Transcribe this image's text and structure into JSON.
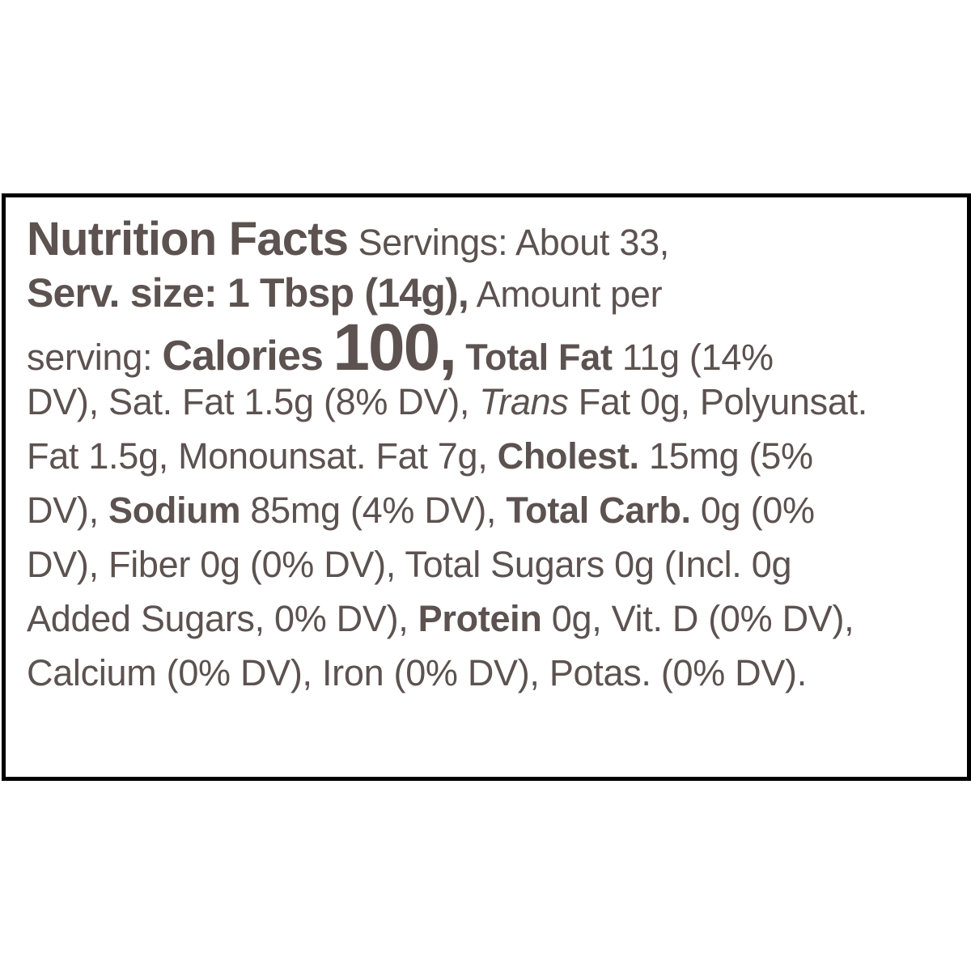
{
  "colors": {
    "text": "#5c5250",
    "border": "#000000",
    "background": "#ffffff"
  },
  "label": {
    "title": "Nutrition Facts",
    "servings": "Servings: About 33,",
    "serving_size": "Serv. size: 1 Tbsp (14g),",
    "amount_per_a": "Amount per",
    "amount_per_b": "serving:",
    "calories_label": "Calories",
    "calories_value": "100,",
    "total_fat_label": "Total Fat",
    "total_fat_value_a": "11g (14%",
    "total_fat_value_b": "DV), Sat. Fat 1.5g (8% DV),",
    "trans_label": "Trans",
    "trans_value": "Fat 0g, Polyunsat.",
    "line5_text": "Fat 1.5g, Monounsat. Fat 7g,",
    "cholest_label": "Cholest.",
    "cholest_value_a": "15mg (5%",
    "cholest_value_b": "DV),",
    "sodium_label": "Sodium",
    "sodium_value": "85mg (4% DV),",
    "carb_label": "Total Carb.",
    "carb_value_a": "0g (0%",
    "line7_text": "DV), Fiber 0g (0% DV), Total Sugars 0g (Incl. 0g",
    "line8_text": "Added Sugars, 0% DV),",
    "protein_label": "Protein",
    "protein_value": "0g, Vit. D (0% DV),",
    "line9_text": "Calcium (0% DV), Iron (0% DV), Potas. (0% DV)."
  }
}
